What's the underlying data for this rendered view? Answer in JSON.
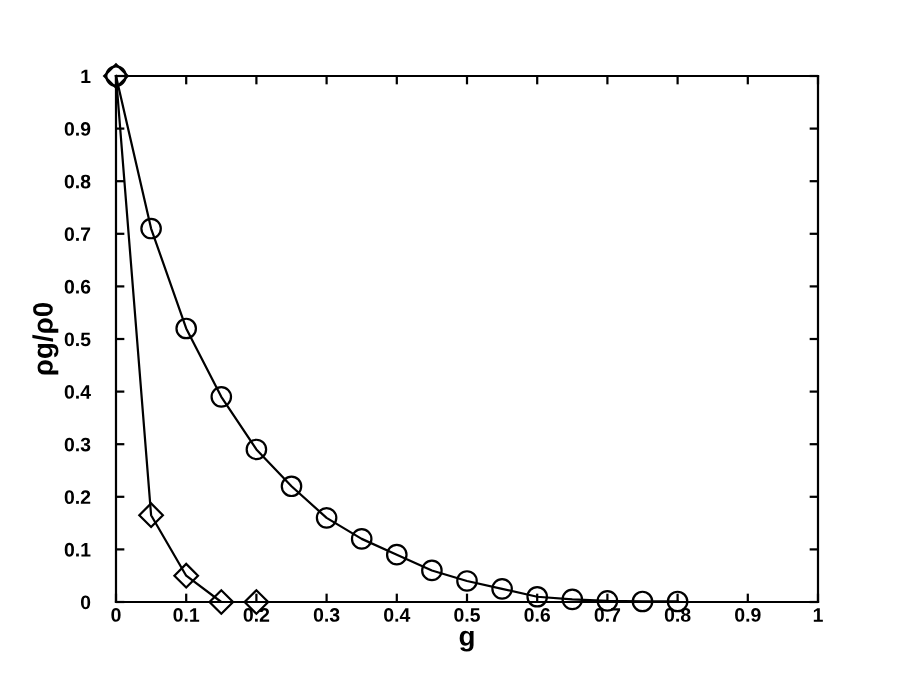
{
  "chart_data": {
    "type": "line",
    "xlabel": "g",
    "ylabel": "ρg/ρ0",
    "series": [
      {
        "color": "#000000",
        "marker": "circle",
        "x": [
          0,
          0.05,
          0.1,
          0.15,
          0.2,
          0.25,
          0.3,
          0.35,
          0.4,
          0.45,
          0.5,
          0.55,
          0.6,
          0.65,
          0.7,
          0.75,
          0.8
        ],
        "values": [
          1,
          0.71,
          0.52,
          0.39,
          0.29,
          0.22,
          0.16,
          0.12,
          0.09,
          0.06,
          0.04,
          0.025,
          0.01,
          0.005,
          0.002,
          0.001,
          0.001
        ]
      },
      {
        "color": "#000000",
        "marker": "diamond",
        "x": [
          0,
          0.05,
          0.1,
          0.15,
          0.2
        ],
        "values": [
          1,
          0.165,
          0.05,
          0.0,
          0.0
        ]
      }
    ],
    "xlim": [
      0,
      1
    ],
    "ylim": [
      0,
      1
    ],
    "xticks": [
      0,
      0.1,
      0.2,
      0.3,
      0.4,
      0.5,
      0.6,
      0.7,
      0.8,
      0.9,
      1
    ],
    "yticks": [
      0,
      0.1,
      0.2,
      0.3,
      0.4,
      0.5,
      0.6,
      0.7,
      0.8,
      0.9,
      1
    ],
    "grid": false,
    "legend": false,
    "line_style": "solid"
  }
}
